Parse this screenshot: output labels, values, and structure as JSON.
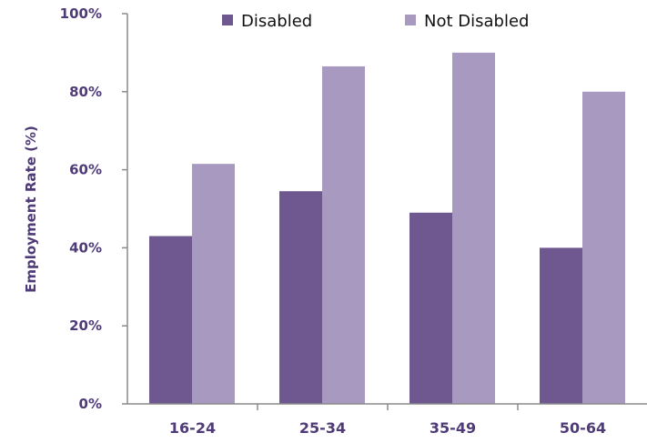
{
  "chart_data": {
    "type": "bar",
    "title": "",
    "xlabel": "",
    "ylabel": "Employment Rate (%)",
    "categories": [
      "16-24",
      "25-34",
      "35-49",
      "50-64"
    ],
    "series": [
      {
        "name": "Disabled",
        "values": [
          43,
          54.5,
          49,
          40
        ]
      },
      {
        "name": "Not Disabled",
        "values": [
          61.5,
          86.5,
          90,
          80
        ]
      }
    ],
    "ylim": [
      0,
      100
    ],
    "yticks": [
      0,
      20,
      40,
      60,
      80,
      100
    ],
    "ytick_labels": [
      "0%",
      "20%",
      "40%",
      "60%",
      "80%",
      "100%"
    ],
    "grid": false,
    "legend_position": "top",
    "colors": {
      "Disabled": "#6f578f",
      "Not Disabled": "#a899c1",
      "axis": "#8a8a8a",
      "text": "#4f3b78"
    }
  }
}
